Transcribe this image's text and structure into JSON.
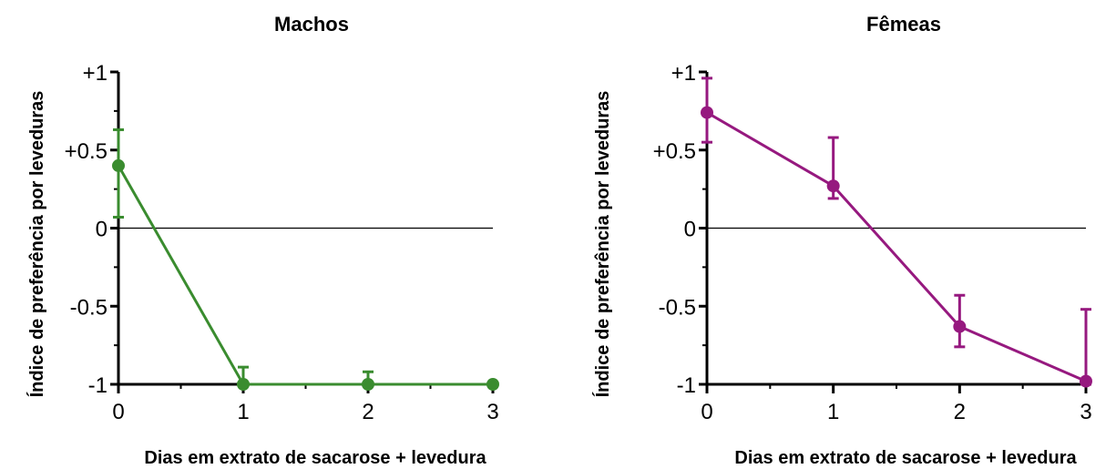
{
  "chart_data": [
    {
      "type": "line",
      "title": "Machos",
      "xlabel": "Dias em extrato de sacarose + levedura",
      "ylabel": "Índice de preferência por leveduras",
      "xlim": [
        0,
        3
      ],
      "ylim": [
        -1,
        1
      ],
      "x_ticks": [
        "0",
        "1",
        "2",
        "3"
      ],
      "y_ticks": [
        "+1",
        "+0.5",
        "0",
        "-0.5",
        "-1"
      ],
      "reference_line_y": 0,
      "color": "#3a8c2f",
      "series": [
        {
          "x": [
            0,
            1,
            2,
            3
          ],
          "y": [
            0.4,
            -1.0,
            -1.0,
            -1.0
          ],
          "error_upper": [
            0.63,
            -0.89,
            -0.92,
            null
          ],
          "error_lower": [
            0.07,
            -1.0,
            -1.0,
            null
          ]
        }
      ]
    },
    {
      "type": "line",
      "title": "Fêmeas",
      "xlabel": "Dias em extrato de sacarose + levedura",
      "ylabel": "Índice de preferência por leveduras",
      "xlim": [
        0,
        3
      ],
      "ylim": [
        -1,
        1
      ],
      "x_ticks": [
        "0",
        "1",
        "2",
        "3"
      ],
      "y_ticks": [
        "+1",
        "+0.5",
        "0",
        "-0.5",
        "-1"
      ],
      "reference_line_y": 0,
      "color": "#96197f",
      "series": [
        {
          "x": [
            0,
            1,
            2,
            3
          ],
          "y": [
            0.74,
            0.27,
            -0.63,
            -0.98
          ],
          "error_upper": [
            0.96,
            0.58,
            -0.43,
            -0.52
          ],
          "error_lower": [
            0.55,
            0.19,
            -0.76,
            -1.0
          ]
        }
      ]
    }
  ]
}
